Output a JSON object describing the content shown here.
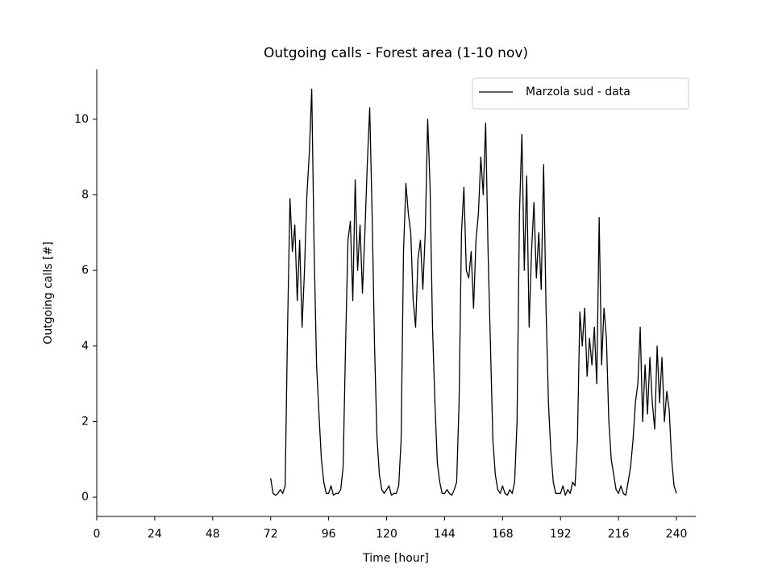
{
  "chart_data": {
    "type": "line",
    "title": "Outgoing calls - Forest area (1-10 nov)",
    "xlabel": "Time [hour]",
    "ylabel": "Outgoing calls [#]",
    "xlim": [
      0,
      248
    ],
    "ylim": [
      -0.51,
      11.32
    ],
    "xticks": [
      0,
      24,
      48,
      72,
      96,
      120,
      144,
      168,
      192,
      216,
      240
    ],
    "yticks": [
      0,
      2,
      4,
      6,
      8,
      10
    ],
    "legend": "upper right",
    "x": [
      72,
      73,
      74,
      75,
      76,
      77,
      78,
      79,
      80,
      81,
      82,
      83,
      84,
      85,
      86,
      87,
      88,
      89,
      90,
      91,
      92,
      93,
      94,
      95,
      96,
      97,
      98,
      99,
      100,
      101,
      102,
      103,
      104,
      105,
      106,
      107,
      108,
      109,
      110,
      111,
      112,
      113,
      114,
      115,
      116,
      117,
      118,
      119,
      120,
      121,
      122,
      123,
      124,
      125,
      126,
      127,
      128,
      129,
      130,
      131,
      132,
      133,
      134,
      135,
      136,
      137,
      138,
      139,
      140,
      141,
      142,
      143,
      144,
      145,
      146,
      147,
      148,
      149,
      150,
      151,
      152,
      153,
      154,
      155,
      156,
      157,
      158,
      159,
      160,
      161,
      162,
      163,
      164,
      165,
      166,
      167,
      168,
      169,
      170,
      171,
      172,
      173,
      174,
      175,
      176,
      177,
      178,
      179,
      180,
      181,
      182,
      183,
      184,
      185,
      186,
      187,
      188,
      189,
      190,
      191,
      192,
      193,
      194,
      195,
      196,
      197,
      198,
      199,
      200,
      201,
      202,
      203,
      204,
      205,
      206,
      207,
      208,
      209,
      210,
      211,
      212,
      213,
      214,
      215,
      216,
      217,
      218,
      219,
      220,
      221,
      222,
      223,
      224,
      225,
      226,
      227,
      228,
      229,
      230,
      231,
      232,
      233,
      234,
      235,
      236,
      237,
      238,
      239,
      240
    ],
    "series": [
      {
        "name": "Marzola sud - data",
        "color": "#000000",
        "values": [
          0.5,
          0.1,
          0.05,
          0.1,
          0.2,
          0.1,
          0.3,
          4.5,
          7.9,
          6.5,
          7.2,
          5.2,
          6.8,
          4.5,
          6.0,
          8.0,
          9.1,
          10.8,
          6.5,
          3.5,
          2.2,
          1.0,
          0.4,
          0.1,
          0.1,
          0.3,
          0.05,
          0.1,
          0.1,
          0.2,
          0.8,
          4.0,
          6.8,
          7.3,
          5.2,
          8.4,
          6.0,
          7.2,
          5.4,
          7.0,
          8.8,
          10.3,
          7.5,
          4.0,
          1.6,
          0.6,
          0.2,
          0.1,
          0.2,
          0.3,
          0.05,
          0.1,
          0.1,
          0.3,
          1.5,
          6.5,
          8.3,
          7.5,
          7.0,
          5.2,
          4.5,
          6.3,
          6.8,
          5.5,
          7.0,
          10.0,
          8.2,
          4.5,
          2.5,
          0.9,
          0.4,
          0.1,
          0.1,
          0.2,
          0.1,
          0.05,
          0.2,
          0.4,
          2.5,
          7.0,
          8.2,
          6.0,
          5.8,
          6.5,
          5.0,
          6.8,
          7.5,
          9.0,
          8.0,
          9.9,
          6.5,
          4.0,
          1.5,
          0.6,
          0.2,
          0.1,
          0.3,
          0.1,
          0.05,
          0.2,
          0.1,
          0.4,
          2.0,
          7.5,
          9.6,
          6.0,
          8.5,
          4.5,
          6.5,
          7.8,
          5.8,
          7.0,
          5.5,
          8.8,
          5.0,
          2.5,
          1.2,
          0.4,
          0.1,
          0.1,
          0.1,
          0.3,
          0.05,
          0.2,
          0.1,
          0.4,
          0.3,
          1.5,
          4.9,
          4.0,
          5.0,
          3.2,
          4.2,
          3.5,
          4.5,
          3.0,
          7.4,
          3.5,
          5.0,
          4.2,
          2.0,
          1.0,
          0.6,
          0.2,
          0.1,
          0.3,
          0.1,
          0.05,
          0.4,
          0.8,
          1.5,
          2.5,
          3.0,
          4.5,
          2.0,
          3.5,
          2.2,
          3.7,
          2.5,
          1.8,
          4.0,
          2.5,
          3.7,
          2.0,
          2.8,
          2.3,
          1.0,
          0.3,
          0.1
        ]
      }
    ]
  }
}
